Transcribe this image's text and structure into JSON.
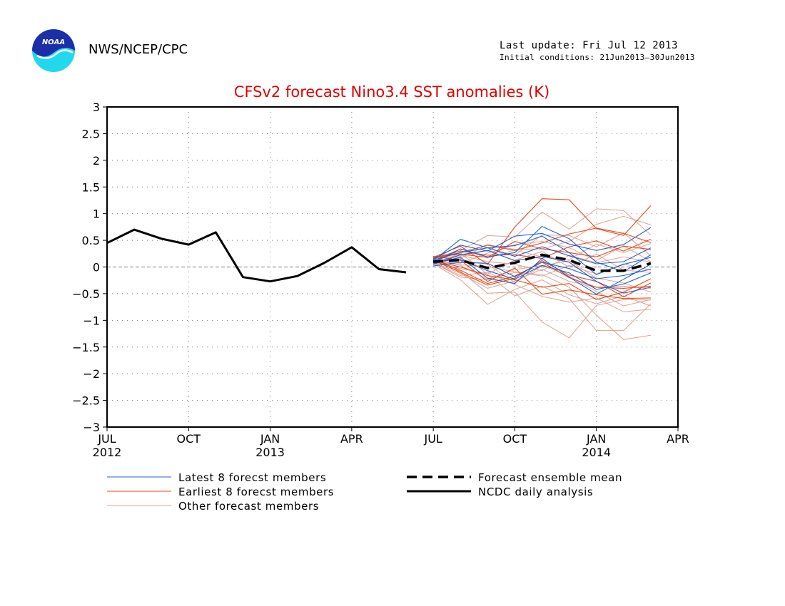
{
  "header": {
    "org": "NWS/NCEP/CPC",
    "last_update": "Last update: Fri Jul 12 2013",
    "initial_conditions": "Initial conditions: 21Jun2013–30Jun2013",
    "logo_text": "NOAA"
  },
  "chart_data": {
    "type": "line",
    "title": "CFSv2 forecast Nino3.4 SST anomalies (K)",
    "ylim": [
      -3,
      3
    ],
    "yticks": [
      3,
      2.5,
      2,
      1.5,
      1,
      0.5,
      0,
      -0.5,
      -1,
      -1.5,
      -2,
      -2.5,
      -3
    ],
    "ytick_labels": [
      "3",
      "2.5",
      "2",
      "1.5",
      "1",
      "0.5",
      "0",
      "−0.5",
      "−1",
      "−1.5",
      "−2",
      "−2.5",
      "−3"
    ],
    "x_axis": {
      "start": "2012-07",
      "end": "2014-04",
      "units": "months",
      "ticks": [
        {
          "month": "2012-07",
          "label": "JUL",
          "year_label": "2012"
        },
        {
          "month": "2012-10",
          "label": "OCT",
          "year_label": ""
        },
        {
          "month": "2013-01",
          "label": "JAN",
          "year_label": "2013"
        },
        {
          "month": "2013-04",
          "label": "APR",
          "year_label": ""
        },
        {
          "month": "2013-07",
          "label": "JUL",
          "year_label": ""
        },
        {
          "month": "2013-10",
          "label": "OCT",
          "year_label": ""
        },
        {
          "month": "2014-01",
          "label": "JAN",
          "year_label": "2014"
        },
        {
          "month": "2014-04",
          "label": "APR",
          "year_label": ""
        }
      ]
    },
    "grid": true,
    "colors": {
      "title": "#e00000",
      "latest": "#2060d0",
      "earliest": "#e84a1a",
      "other": "#e0a090",
      "observed": "#000000",
      "mean": "#000000"
    },
    "legend": {
      "placement": "bottom",
      "entries": [
        {
          "key": "latest",
          "label": "Latest 8 forecst members"
        },
        {
          "key": "mean",
          "label": "Forecast ensemble mean"
        },
        {
          "key": "earliest",
          "label": "Earliest 8 forecst members"
        },
        {
          "key": "observed",
          "label": "NCDC daily analysis"
        },
        {
          "key": "other",
          "label": "Other forecast members"
        }
      ]
    },
    "observed": {
      "x": [
        "2012-07",
        "2012-08",
        "2012-09",
        "2012-10",
        "2012-11",
        "2012-12",
        "2013-01",
        "2013-02",
        "2013-03",
        "2013-04",
        "2013-05",
        "2013-06"
      ],
      "y": [
        0.45,
        0.7,
        0.53,
        0.42,
        0.65,
        -0.19,
        -0.27,
        -0.17,
        0.08,
        0.37,
        -0.04,
        -0.1
      ]
    },
    "forecast_x": [
      "2013-07",
      "2013-08",
      "2013-09",
      "2013-10",
      "2013-11",
      "2013-12",
      "2014-01",
      "2014-02",
      "2014-03"
    ],
    "ensemble_mean": [
      0.1,
      0.13,
      -0.02,
      0.08,
      0.23,
      0.13,
      -0.07,
      -0.07,
      0.07
    ],
    "members_latest": [
      [
        0.12,
        0.52,
        0.36,
        0.4,
        0.58,
        0.27,
        -0.14,
        0.05,
        0.18
      ],
      [
        0.08,
        0.34,
        0.19,
        0.27,
        0.76,
        0.53,
        0.09,
        -0.09,
        0.23
      ],
      [
        0.05,
        0.23,
        0.31,
        0.12,
        0.2,
        0.09,
        -0.27,
        -0.49,
        -0.38
      ],
      [
        0.1,
        0.14,
        -0.07,
        -0.23,
        0.03,
        -0.11,
        -0.42,
        -0.32,
        -0.11
      ],
      [
        0.15,
        0.41,
        0.3,
        0.58,
        0.63,
        0.43,
        0.31,
        0.42,
        0.74
      ],
      [
        0.02,
        0.09,
        0.07,
        -0.18,
        0.09,
        -0.03,
        -0.22,
        -0.16,
        -0.04
      ],
      [
        0.13,
        0.27,
        0.36,
        0.2,
        0.38,
        0.21,
        0.06,
        0.1,
        0.36
      ],
      [
        0.07,
        0.18,
        -0.21,
        -0.31,
        0.16,
        -0.19,
        -0.51,
        -0.23,
        0.05
      ]
    ],
    "members_earliest": [
      [
        0.18,
        0.39,
        0.05,
        0.75,
        1.28,
        1.26,
        0.72,
        0.59,
        1.15
      ],
      [
        0.2,
        0.13,
        -0.27,
        -0.02,
        -0.51,
        -0.43,
        -0.52,
        -0.59,
        -0.58
      ],
      [
        0.14,
        -0.06,
        -0.31,
        -0.17,
        0.09,
        -0.2,
        -0.38,
        -0.4,
        -0.36
      ],
      [
        0.16,
        0.27,
        0.41,
        0.31,
        0.45,
        0.62,
        0.73,
        0.63,
        0.46
      ],
      [
        0.12,
        0.0,
        -0.16,
        -0.24,
        -0.38,
        -0.31,
        -0.61,
        -0.47,
        -0.22
      ],
      [
        0.19,
        0.24,
        0.18,
        0.48,
        0.34,
        0.27,
        0.19,
        0.39,
        0.33
      ],
      [
        0.13,
        -0.1,
        -0.34,
        -0.21,
        0.12,
        -0.15,
        -0.27,
        -0.56,
        -0.3
      ],
      [
        0.17,
        0.3,
        0.22,
        0.23,
        0.16,
        0.38,
        0.49,
        0.3,
        0.52
      ]
    ],
    "members_other": [
      [
        0.1,
        0.31,
        0.59,
        0.56,
        1.03,
        0.71,
        1.09,
        1.06,
        0.6
      ],
      [
        0.11,
        -0.08,
        -0.49,
        -0.47,
        -1.03,
        -1.33,
        -0.72,
        -0.61,
        -0.62
      ],
      [
        0.05,
        0.26,
        -0.14,
        -0.54,
        -0.36,
        -0.59,
        -1.19,
        -1.19,
        -0.69
      ],
      [
        0.08,
        -0.19,
        -0.24,
        -0.1,
        -0.14,
        -0.38,
        -0.9,
        -1.36,
        -1.28
      ],
      [
        0.12,
        0.16,
        0.42,
        0.33,
        0.34,
        0.48,
        0.8,
        0.95,
        0.79
      ],
      [
        0.09,
        -0.03,
        -0.13,
        0.13,
        0.29,
        0.0,
        0.24,
        -0.06,
        -0.1
      ],
      [
        0.14,
        0.22,
        0.1,
        0.05,
        -0.07,
        0.22,
        0.08,
        0.19,
        0.09
      ],
      [
        0.06,
        -0.24,
        -0.7,
        -0.42,
        -0.24,
        -0.52,
        -0.69,
        -0.54,
        -0.73
      ],
      [
        0.1,
        0.07,
        0.26,
        0.42,
        0.48,
        0.36,
        0.12,
        0.4,
        0.1
      ],
      [
        0.16,
        0.03,
        -0.23,
        -0.05,
        0.03,
        -0.17,
        -0.46,
        -0.73,
        -0.61
      ],
      [
        0.07,
        0.12,
        0.05,
        -0.29,
        0.02,
        0.12,
        -0.21,
        -0.3,
        -0.47
      ],
      [
        0.11,
        0.2,
        0.31,
        0.22,
        0.6,
        0.59,
        0.38,
        0.64,
        0.21
      ],
      [
        0.13,
        0.04,
        0.01,
        -0.09,
        -0.17,
        0.03,
        -0.13,
        0.06,
        -0.06
      ],
      [
        0.09,
        -0.12,
        -0.4,
        -0.26,
        -0.04,
        -0.27,
        -0.38,
        -0.36,
        -0.4
      ],
      [
        0.12,
        0.34,
        0.17,
        0.32,
        0.19,
        0.14,
        0.43,
        0.27,
        0.44
      ],
      [
        0.08,
        -0.16,
        -0.1,
        -0.33,
        -0.55,
        -0.66,
        -0.58,
        -0.84,
        -0.79
      ]
    ]
  }
}
